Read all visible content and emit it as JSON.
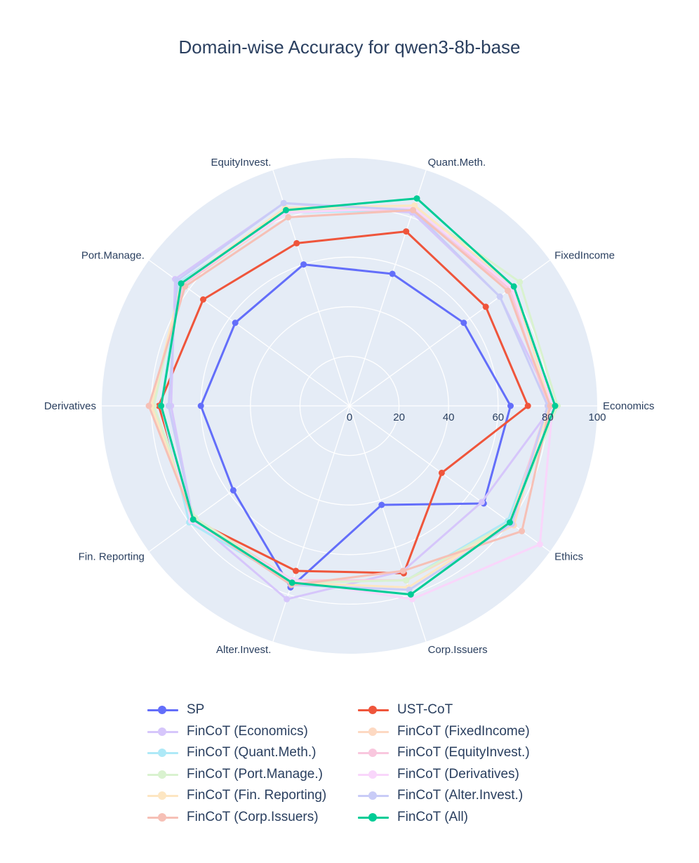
{
  "chart_data": {
    "type": "radar",
    "title": "Domain-wise Accuracy for qwen3-8b-base",
    "axes": [
      "Economics",
      "FixedIncome",
      "Quant.Meth.",
      "EquityInvest.",
      "Port.Manage.",
      "Derivatives",
      "Fin. Reporting",
      "Alter.Invest.",
      "Corp.Issuers",
      "Ethics"
    ],
    "radial_range": [
      0,
      100
    ],
    "radial_ticks": [
      "0",
      "20",
      "40",
      "60",
      "80",
      "100"
    ],
    "grid": true,
    "legend_position": "bottom",
    "series": [
      {
        "name": "SP",
        "color": "#636efa",
        "opacity": 1.0,
        "values": [
          65,
          57,
          56,
          60,
          57,
          60,
          58,
          77,
          42,
          67
        ]
      },
      {
        "name": "UST-CoT",
        "color": "#ef553b",
        "opacity": 1.0,
        "values": [
          72,
          68,
          74,
          69,
          73,
          77,
          78,
          70,
          71,
          46
        ]
      },
      {
        "name": "FinCoT (Economics)",
        "color": "#d6c6fb",
        "opacity": 1.0,
        "values": [
          82,
          75,
          82,
          86,
          87,
          72,
          78,
          82,
          70,
          66
        ]
      },
      {
        "name": "FinCoT (FixedIncome)",
        "color": "#fdd9c2",
        "opacity": 1.0,
        "values": [
          80,
          80,
          84,
          82,
          83,
          80,
          77,
          74,
          74,
          82
        ]
      },
      {
        "name": "FinCoT (Quant.Meth.)",
        "color": "#aee9f7",
        "opacity": 1.0,
        "values": [
          81,
          82,
          83,
          82,
          85,
          76,
          80,
          75,
          74,
          79
        ]
      },
      {
        "name": "FinCoT (EquityInvest.)",
        "color": "#f9c7de",
        "opacity": 1.0,
        "values": [
          80,
          80,
          83,
          83,
          83,
          80,
          78,
          74,
          74,
          80
        ]
      },
      {
        "name": "FinCoT (Port.Manage.)",
        "color": "#d9f2cf",
        "opacity": 1.0,
        "values": [
          84,
          85,
          84,
          83,
          84,
          79,
          77,
          75,
          74,
          80
        ]
      },
      {
        "name": "FinCoT (Derivatives)",
        "color": "#f9d6fb",
        "opacity": 1.0,
        "values": [
          82,
          81,
          84,
          82,
          84,
          76,
          79,
          74,
          82,
          95
        ]
      },
      {
        "name": "FinCoT (Fin. Reporting)",
        "color": "#fde6c2",
        "opacity": 1.0,
        "values": [
          81,
          82,
          85,
          84,
          84,
          80,
          78,
          75,
          77,
          80
        ]
      },
      {
        "name": "FinCoT (Alter.Invest.)",
        "color": "#c9ccf7",
        "opacity": 1.0,
        "values": [
          80,
          75,
          83,
          86,
          86,
          73,
          78,
          76,
          78,
          81
        ]
      },
      {
        "name": "FinCoT (Corp.Issuers)",
        "color": "#f6c0b6",
        "opacity": 1.0,
        "values": [
          81,
          79,
          83,
          80,
          82,
          81,
          78,
          76,
          70,
          86
        ]
      },
      {
        "name": "FinCoT (All)",
        "color": "#00cc96",
        "opacity": 1.0,
        "values": [
          83,
          82,
          88,
          83,
          84,
          76,
          78,
          75,
          80,
          80
        ]
      }
    ]
  }
}
